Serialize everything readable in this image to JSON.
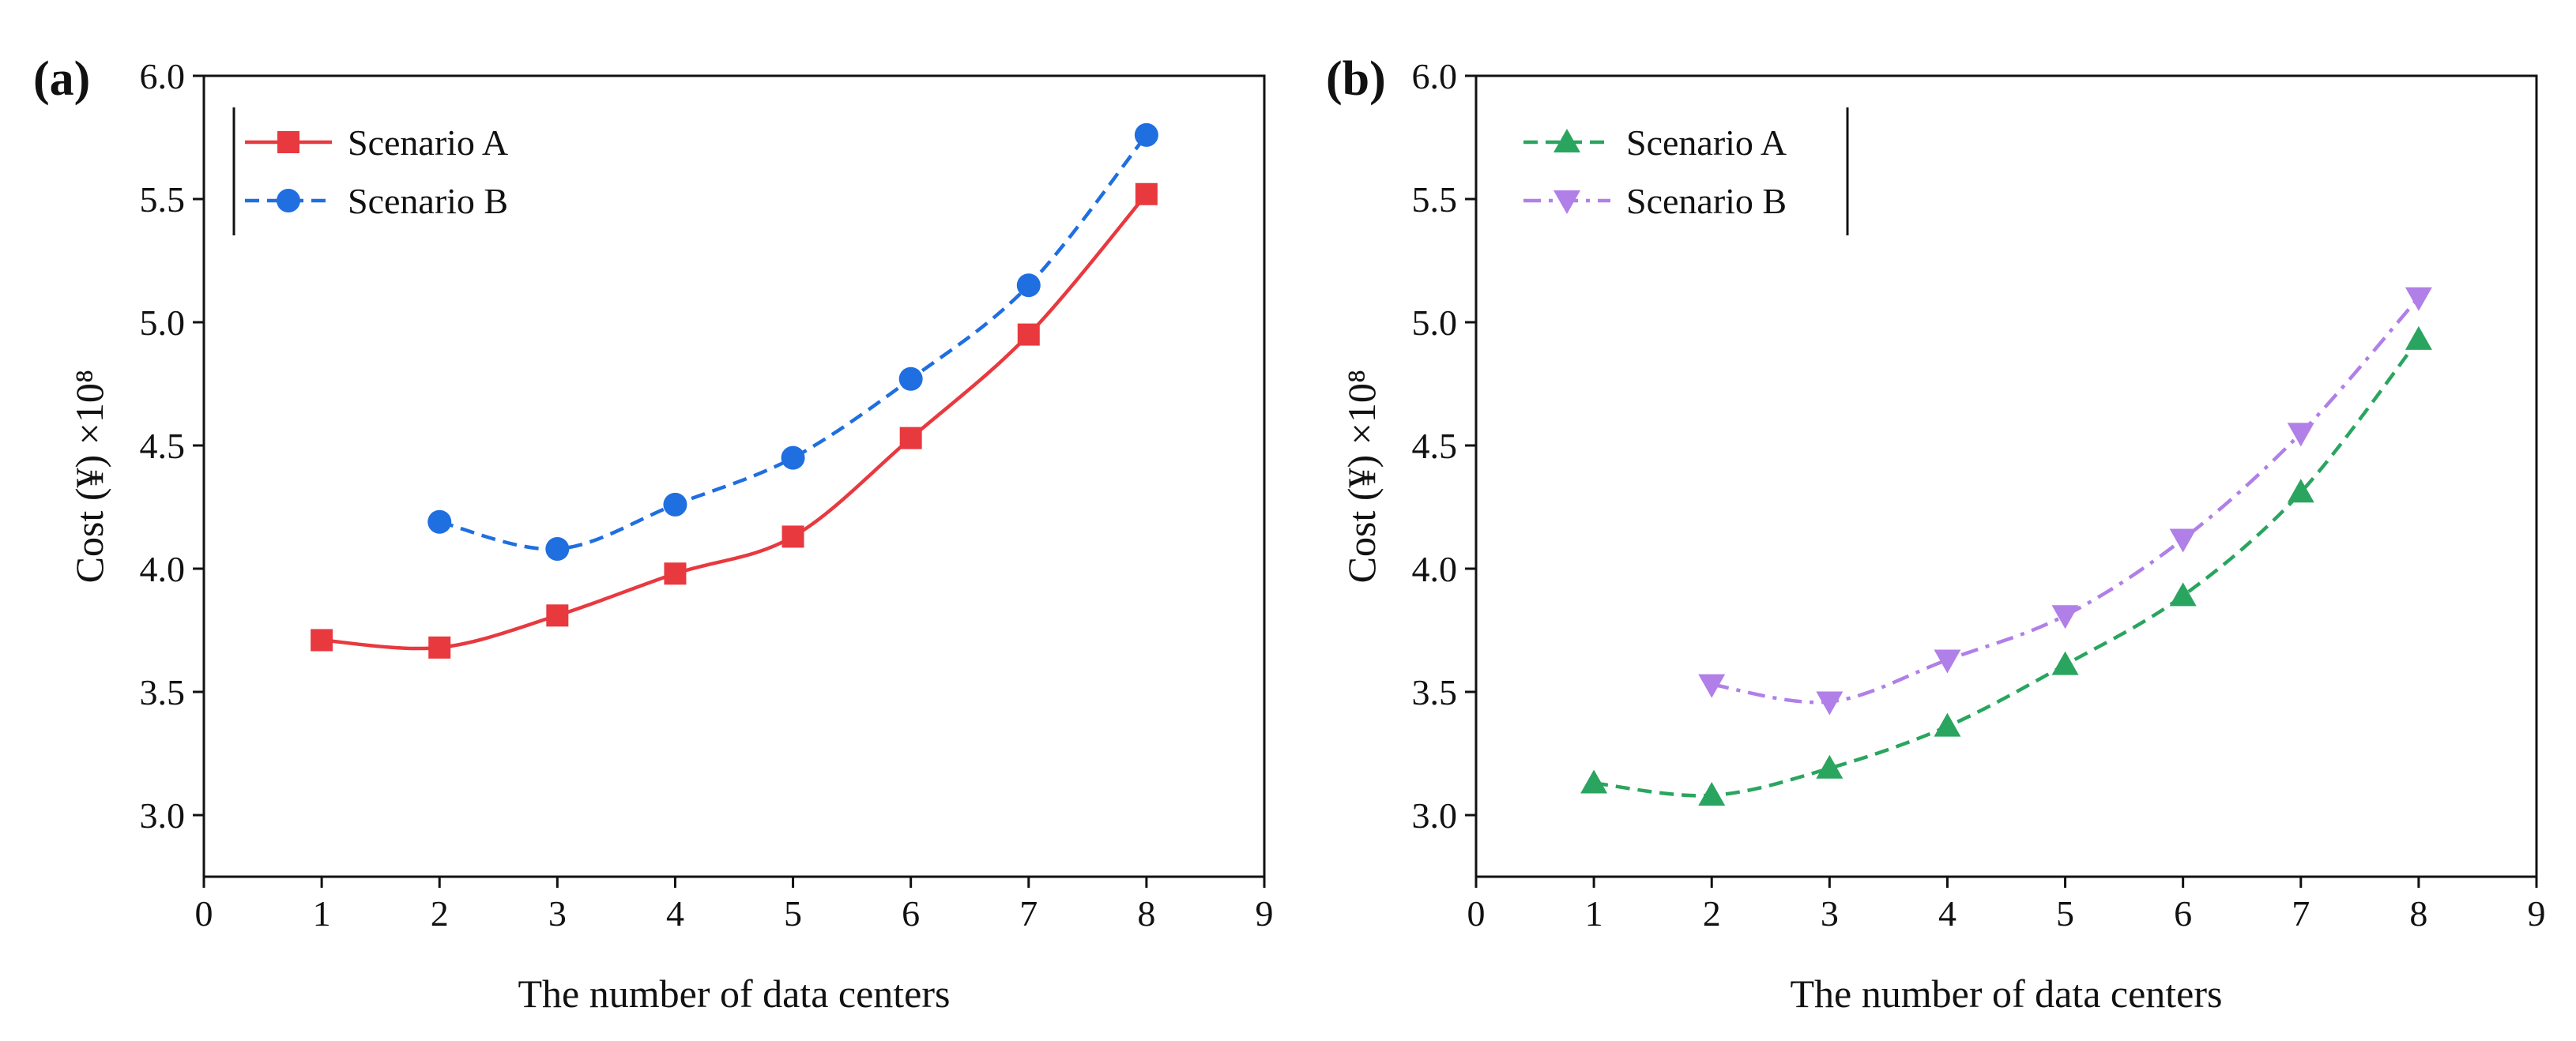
{
  "chart_data": [
    {
      "type": "line",
      "panel_label": "(a)",
      "xlabel": "The number of data centers",
      "ylabel": "Cost (¥) ×10⁸",
      "xlim": [
        0,
        9
      ],
      "ylim": [
        2.75,
        6.0
      ],
      "x_ticks": [
        0,
        1,
        2,
        3,
        4,
        5,
        6,
        7,
        8,
        9
      ],
      "y_ticks": [
        3.0,
        3.5,
        4.0,
        4.5,
        5.0,
        5.5,
        6.0
      ],
      "grid": false,
      "legend_position": "top-left",
      "series": [
        {
          "name": "Scenario A",
          "x": [
            1,
            2,
            3,
            4,
            5,
            6,
            7,
            8
          ],
          "values": [
            3.71,
            3.68,
            3.81,
            3.98,
            4.13,
            4.53,
            4.95,
            5.52
          ],
          "color": "#e8393f",
          "marker": "square",
          "line_style": "solid"
        },
        {
          "name": "Scenario B",
          "x": [
            2,
            3,
            4,
            5,
            6,
            7,
            8
          ],
          "values": [
            4.19,
            4.08,
            4.26,
            4.45,
            4.77,
            5.15,
            5.76
          ],
          "color": "#1f6fe0",
          "marker": "circle",
          "line_style": "dashed"
        }
      ]
    },
    {
      "type": "line",
      "panel_label": "(b)",
      "xlabel": "The number of data centers",
      "ylabel": "Cost (¥) ×10⁸",
      "xlim": [
        0,
        9
      ],
      "ylim": [
        2.75,
        6.0
      ],
      "x_ticks": [
        0,
        1,
        2,
        3,
        4,
        5,
        6,
        7,
        8,
        9
      ],
      "y_ticks": [
        3.0,
        3.5,
        4.0,
        4.5,
        5.0,
        5.5,
        6.0
      ],
      "grid": false,
      "legend_position": "top-left",
      "series": [
        {
          "name": "Scenario A",
          "x": [
            1,
            2,
            3,
            4,
            5,
            6,
            7,
            8
          ],
          "values": [
            3.13,
            3.08,
            3.19,
            3.36,
            3.61,
            3.89,
            4.31,
            4.93
          ],
          "color": "#2aa55f",
          "marker": "triangle-up",
          "line_style": "dashed"
        },
        {
          "name": "Scenario B",
          "x": [
            2,
            3,
            4,
            5,
            6,
            7,
            8
          ],
          "values": [
            3.53,
            3.46,
            3.63,
            3.81,
            4.12,
            4.55,
            5.1
          ],
          "color": "#b07fe8",
          "marker": "triangle-down",
          "line_style": "dash-dot"
        }
      ]
    }
  ]
}
